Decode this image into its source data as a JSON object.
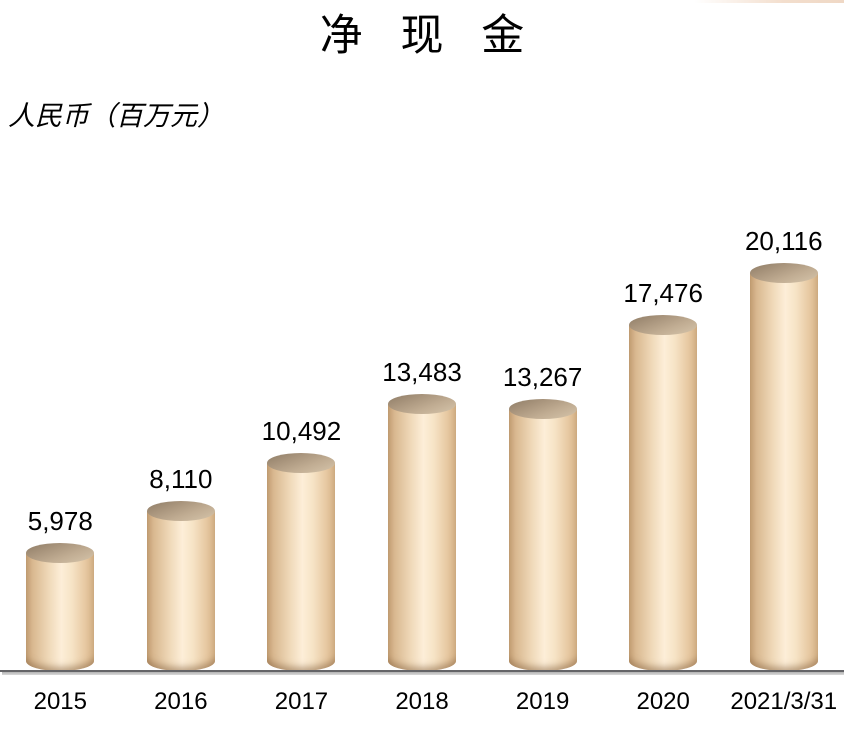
{
  "title": "净 现 金",
  "subtitle": "人民币（百万元）",
  "chart_data": {
    "type": "bar",
    "bar_shape": "3d-cylinder",
    "title": "净 现 金",
    "unit_label": "人民币（百万元）",
    "categories": [
      "2015",
      "2016",
      "2017",
      "2018",
      "2019",
      "2020",
      "2021/3/31"
    ],
    "values": [
      5978,
      8110,
      10492,
      13483,
      13267,
      17476,
      20116
    ],
    "value_labels": [
      "5,978",
      "8,110",
      "10,492",
      "13,483",
      "13,267",
      "17,476",
      "20,116"
    ],
    "ylim": [
      0,
      20116
    ],
    "grid": false,
    "legend": "none",
    "colors": {
      "bar_body_highlight": "#FDEED8",
      "bar_body_edge": "#C49F74",
      "bar_top_dark": "#8E7C66",
      "bar_top_light": "#D6C5AB",
      "axis_line": "#646467",
      "axis_shadow": "#B2B2B2",
      "background": "#FFFFFF",
      "text": "#000000"
    }
  }
}
